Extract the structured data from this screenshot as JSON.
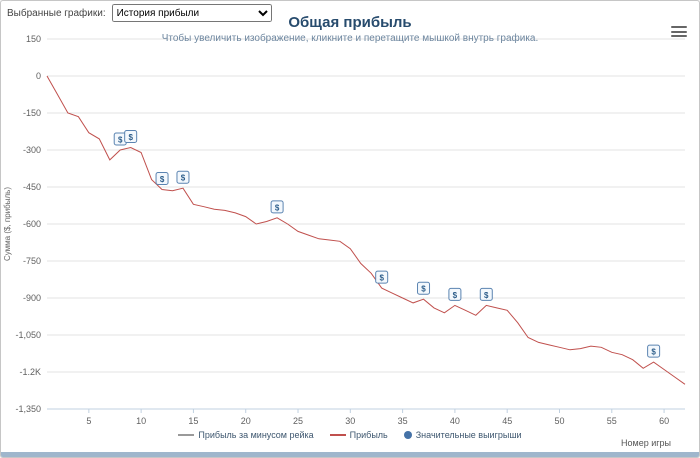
{
  "toolbar": {
    "label": "Выбранные графики:",
    "select_value": "История прибыли"
  },
  "legend": {
    "items": [
      {
        "label": "Прибыль за минусом рейка",
        "color": "#9a9a9a",
        "type": "line"
      },
      {
        "label": "Прибыль",
        "color": "#c0504d",
        "type": "line"
      },
      {
        "label": "Значительные выигрыши",
        "color": "#4572a7",
        "type": "circle"
      }
    ]
  },
  "chart_data": {
    "type": "line",
    "title": "Общая прибыль",
    "subtitle": "Чтобы увеличить изображение, кликните и перетащите мышкой внутрь графика.",
    "xlabel": "Номер игры",
    "ylabel": "Сумма ($, прибыль)",
    "xlim": [
      1,
      62
    ],
    "ylim": [
      -1350,
      150
    ],
    "grid": true,
    "legend_position": "bottom",
    "x_ticks": [
      5,
      10,
      15,
      20,
      25,
      30,
      35,
      40,
      45,
      50,
      55,
      60
    ],
    "y_ticks": [
      {
        "value": 150,
        "label": "150"
      },
      {
        "value": 0,
        "label": "0"
      },
      {
        "value": -150,
        "label": "-150"
      },
      {
        "value": -300,
        "label": "-300"
      },
      {
        "value": -450,
        "label": "-450"
      },
      {
        "value": -600,
        "label": "-600"
      },
      {
        "value": -750,
        "label": "-750"
      },
      {
        "value": -900,
        "label": "-900"
      },
      {
        "value": -1050,
        "label": "-1,050"
      },
      {
        "value": -1200,
        "label": "-1.2K"
      },
      {
        "value": -1350,
        "label": "-1,350"
      }
    ],
    "series": [
      {
        "name": "Прибыль за минусом рейка",
        "color": "#9a9a9a",
        "visible": false,
        "values": []
      },
      {
        "name": "Прибыль",
        "color": "#c0504d",
        "visible": true,
        "values": [
          0,
          -75,
          -150,
          -165,
          -230,
          -255,
          -340,
          -300,
          -290,
          -310,
          -420,
          -460,
          -465,
          -455,
          -520,
          -530,
          -540,
          -545,
          -555,
          -570,
          -600,
          -590,
          -575,
          -600,
          -630,
          -645,
          -660,
          -665,
          -670,
          -700,
          -760,
          -800,
          -860,
          -880,
          -900,
          -920,
          -905,
          -940,
          -960,
          -930,
          -950,
          -970,
          -930,
          -940,
          -950,
          -1000,
          -1060,
          -1080,
          -1090,
          -1100,
          -1110,
          -1105,
          -1095,
          -1100,
          -1120,
          -1130,
          -1150,
          -1185,
          -1160,
          -1190,
          -1220,
          -1250
        ]
      }
    ],
    "markers": {
      "name": "Значительные выигрыши",
      "glyph": "$",
      "color": "#4572a7",
      "games": [
        8,
        9,
        12,
        14,
        23,
        33,
        37,
        40,
        43,
        59
      ]
    }
  }
}
